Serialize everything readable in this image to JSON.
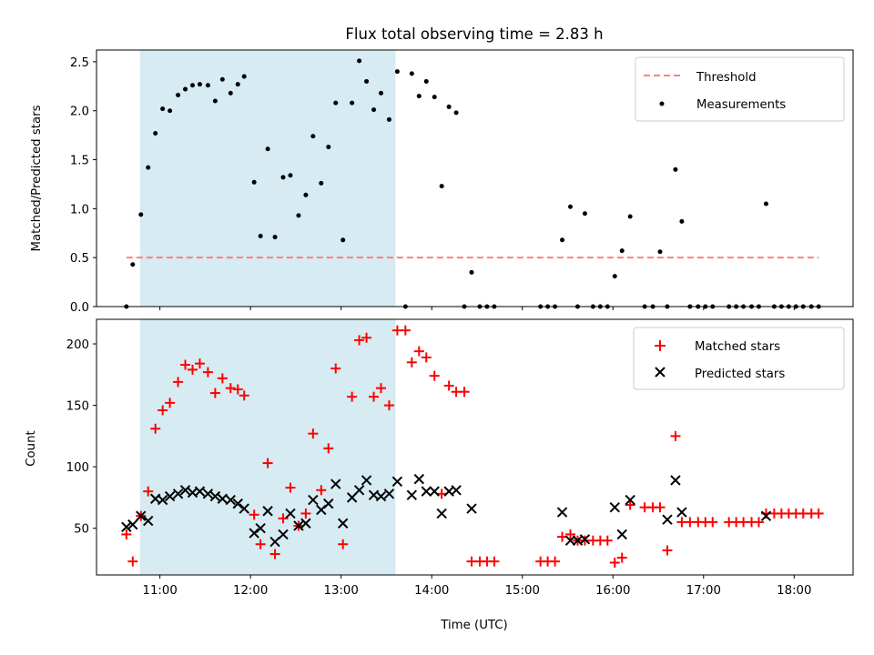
{
  "chart_data": [
    {
      "type": "scatter",
      "title": "Flux total observing time = 2.83 h",
      "xlabel": "",
      "ylabel": "Matched/Predicted stars",
      "xlim": [
        10.3,
        18.65
      ],
      "ylim": [
        0,
        2.62
      ],
      "yticks": [
        0.0,
        0.5,
        1.0,
        1.5,
        2.0,
        2.5
      ],
      "ytick_labels": [
        "0.0",
        "0.5",
        "1.0",
        "1.5",
        "2.0",
        "2.5"
      ],
      "xticks": [
        11,
        12,
        13,
        14,
        15,
        16,
        17,
        18
      ],
      "shaded_interval": [
        10.78,
        13.6
      ],
      "shade_color": "#add8e6",
      "legend_position": "upper right",
      "legend": [
        "Threshold",
        "Measurements"
      ],
      "threshold": {
        "name": "Threshold",
        "y": 0.5,
        "x_range": [
          10.63,
          18.27
        ],
        "color": "#ff7f7f"
      },
      "series": [
        {
          "name": "Measurements",
          "color": "#000000",
          "x": [
            10.63,
            10.7,
            10.79,
            10.87,
            10.95,
            11.03,
            11.11,
            11.2,
            11.28,
            11.36,
            11.44,
            11.53,
            11.61,
            11.69,
            11.78,
            11.86,
            11.93,
            12.04,
            12.11,
            12.19,
            12.27,
            12.36,
            12.44,
            12.53,
            12.61,
            12.69,
            12.78,
            12.86,
            12.94,
            13.02,
            13.12,
            13.2,
            13.28,
            13.36,
            13.44,
            13.53,
            13.62,
            13.71,
            13.78,
            13.86,
            13.94,
            14.03,
            14.11,
            14.19,
            14.27,
            14.36,
            14.44,
            14.53,
            14.61,
            14.69,
            15.2,
            15.28,
            15.36,
            15.44,
            15.53,
            15.61,
            15.69,
            15.78,
            15.86,
            15.94,
            16.02,
            16.1,
            16.19,
            16.35,
            16.44,
            16.52,
            16.6,
            16.69,
            16.76,
            16.85,
            16.94,
            17.02,
            17.1,
            17.28,
            17.36,
            17.44,
            17.53,
            17.61,
            17.69,
            17.78,
            17.86,
            17.94,
            18.02,
            18.1,
            18.19,
            18.27
          ],
          "y": [
            0.0,
            0.43,
            0.94,
            1.42,
            1.77,
            2.02,
            2.0,
            2.16,
            2.22,
            2.26,
            2.27,
            2.26,
            2.1,
            2.32,
            2.18,
            2.27,
            2.35,
            1.27,
            0.72,
            1.61,
            0.71,
            1.32,
            1.34,
            0.93,
            1.14,
            1.74,
            1.26,
            1.63,
            2.08,
            0.68,
            2.08,
            2.51,
            2.3,
            2.01,
            2.18,
            1.91,
            2.4,
            0.0,
            2.38,
            2.15,
            2.3,
            2.14,
            1.23,
            2.04,
            1.98,
            0.0,
            0.35,
            0.0,
            0.0,
            0.0,
            0.0,
            0.0,
            0.0,
            0.68,
            1.02,
            0.0,
            0.95,
            0.0,
            0.0,
            0.0,
            0.31,
            0.57,
            0.92,
            0.0,
            0.0,
            0.56,
            0.0,
            1.4,
            0.87,
            0.0,
            0.0,
            0.0,
            0.0,
            0.0,
            0.0,
            0.0,
            0.0,
            0.0,
            1.05,
            0.0,
            0.0,
            0.0,
            0.0,
            0.0,
            0.0,
            0.0
          ]
        }
      ]
    },
    {
      "type": "scatter",
      "title": "",
      "xlabel": "Time (UTC)",
      "ylabel": "Count",
      "xlim": [
        10.3,
        18.65
      ],
      "ylim": [
        12,
        220
      ],
      "yticks": [
        50,
        100,
        150,
        200
      ],
      "ytick_labels": [
        "50",
        "100",
        "150",
        "200"
      ],
      "xticks": [
        11,
        12,
        13,
        14,
        15,
        16,
        17,
        18
      ],
      "xtick_labels": [
        "11:00",
        "12:00",
        "13:00",
        "14:00",
        "15:00",
        "16:00",
        "17:00",
        "18:00"
      ],
      "shaded_interval": [
        10.78,
        13.6
      ],
      "shade_color": "#add8e6",
      "legend_position": "upper right",
      "legend": [
        "Matched stars",
        "Predicted stars"
      ],
      "series": [
        {
          "name": "Matched stars",
          "marker": "+",
          "color": "#ff0000",
          "x": [
            10.63,
            10.7,
            10.79,
            10.87,
            10.95,
            11.03,
            11.11,
            11.2,
            11.28,
            11.36,
            11.44,
            11.53,
            11.61,
            11.69,
            11.78,
            11.86,
            11.93,
            12.04,
            12.11,
            12.19,
            12.27,
            12.36,
            12.44,
            12.53,
            12.61,
            12.69,
            12.78,
            12.86,
            12.94,
            13.02,
            13.12,
            13.2,
            13.28,
            13.36,
            13.44,
            13.53,
            13.62,
            13.71,
            13.78,
            13.86,
            13.94,
            14.03,
            14.11,
            14.19,
            14.27,
            14.36,
            14.44,
            14.53,
            14.61,
            14.69,
            15.2,
            15.28,
            15.36,
            15.44,
            15.53,
            15.61,
            15.69,
            15.78,
            15.86,
            15.94,
            16.02,
            16.1,
            16.19,
            16.35,
            16.44,
            16.52,
            16.6,
            16.69,
            16.76,
            16.85,
            16.94,
            17.02,
            17.1,
            17.28,
            17.36,
            17.44,
            17.53,
            17.61,
            17.69,
            17.78,
            17.86,
            17.94,
            18.02,
            18.1,
            18.19,
            18.27
          ],
          "y": [
            45,
            23,
            60,
            80,
            131,
            146,
            152,
            169,
            183,
            179,
            184,
            177,
            160,
            172,
            164,
            163,
            158,
            61,
            37,
            103,
            29,
            58,
            83,
            52,
            62,
            127,
            81,
            115,
            180,
            37,
            157,
            203,
            205,
            157,
            164,
            150,
            211,
            211,
            185,
            194,
            189,
            174,
            78,
            166,
            161,
            161,
            23,
            23,
            23,
            23,
            23,
            23,
            23,
            43,
            45,
            40,
            40,
            40,
            40,
            40,
            22,
            26,
            69,
            67,
            67,
            67,
            32,
            125,
            55,
            55,
            55,
            55,
            55,
            55,
            55,
            55,
            55,
            55,
            62,
            62,
            62,
            62,
            62,
            62,
            62,
            62
          ]
        },
        {
          "name": "Predicted stars",
          "marker": "x",
          "color": "#000000",
          "x": [
            10.63,
            10.7,
            10.79,
            10.87,
            10.95,
            11.03,
            11.11,
            11.2,
            11.28,
            11.36,
            11.44,
            11.53,
            11.61,
            11.69,
            11.78,
            11.86,
            11.93,
            12.04,
            12.11,
            12.19,
            12.27,
            12.36,
            12.44,
            12.53,
            12.61,
            12.69,
            12.78,
            12.86,
            12.94,
            13.02,
            13.12,
            13.2,
            13.28,
            13.36,
            13.44,
            13.53,
            13.62,
            13.78,
            13.86,
            13.94,
            14.03,
            14.11,
            14.19,
            14.27,
            14.44,
            15.44,
            15.53,
            15.61,
            15.69,
            16.02,
            16.1,
            16.19,
            16.6,
            16.69,
            16.76,
            17.69
          ],
          "y": [
            51,
            53,
            60,
            56,
            74,
            73,
            76,
            78,
            81,
            79,
            80,
            78,
            76,
            74,
            73,
            70,
            66,
            46,
            50,
            64,
            39,
            45,
            62,
            52,
            54,
            73,
            65,
            70,
            86,
            54,
            75,
            81,
            89,
            77,
            76,
            78,
            88,
            77,
            90,
            80,
            80,
            62,
            80,
            81,
            66,
            63,
            40,
            40,
            41,
            67,
            45,
            73,
            57,
            89,
            63,
            60
          ]
        }
      ]
    }
  ]
}
